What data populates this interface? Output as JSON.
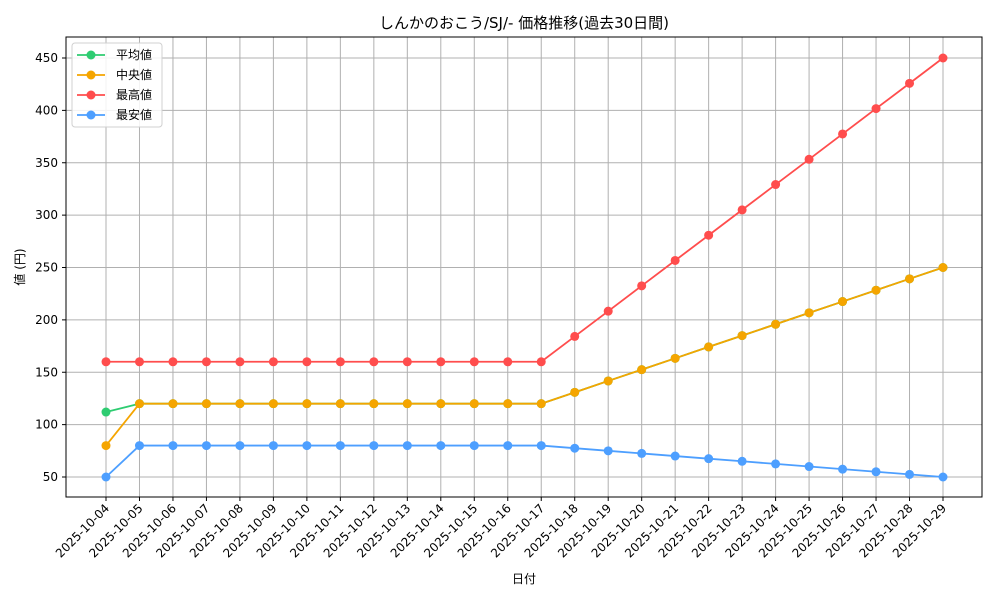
{
  "chart_data": {
    "type": "line",
    "title": "しんかのおこう/SJ/- 価格推移(過去30日間)",
    "xlabel": "日付",
    "ylabel": "値 (円)",
    "ylim": [
      30,
      470
    ],
    "yticks": [
      50,
      100,
      150,
      200,
      250,
      300,
      350,
      400,
      450
    ],
    "grid": true,
    "legend_position": "upper left",
    "categories": [
      "2025-10-04",
      "2025-10-05",
      "2025-10-06",
      "2025-10-07",
      "2025-10-08",
      "2025-10-09",
      "2025-10-10",
      "2025-10-11",
      "2025-10-12",
      "2025-10-13",
      "2025-10-14",
      "2025-10-15",
      "2025-10-16",
      "2025-10-17",
      "2025-10-18",
      "2025-10-19",
      "2025-10-20",
      "2025-10-21",
      "2025-10-22",
      "2025-10-23",
      "2025-10-24",
      "2025-10-25",
      "2025-10-26",
      "2025-10-27",
      "2025-10-28",
      "2025-10-29"
    ],
    "series": [
      {
        "name": "平均値",
        "color": "#2ecc71",
        "values": [
          112,
          120,
          120,
          120,
          120,
          120,
          120,
          120,
          120,
          120,
          120,
          120,
          120,
          120,
          130.8,
          141.7,
          152.5,
          163.3,
          174.2,
          185,
          195.8,
          206.7,
          217.5,
          228.3,
          239.2,
          250
        ]
      },
      {
        "name": "中央値",
        "color": "#f5a500",
        "values": [
          80,
          120,
          120,
          120,
          120,
          120,
          120,
          120,
          120,
          120,
          120,
          120,
          120,
          120,
          130.8,
          141.7,
          152.5,
          163.3,
          174.2,
          185,
          195.8,
          206.7,
          217.5,
          228.3,
          239.2,
          250
        ]
      },
      {
        "name": "最高値",
        "color": "#ff4d4d",
        "values": [
          160,
          160,
          160,
          160,
          160,
          160,
          160,
          160,
          160,
          160,
          160,
          160,
          160,
          160,
          184.2,
          208.3,
          232.5,
          256.7,
          280.8,
          305,
          329.2,
          353.3,
          377.5,
          401.7,
          425.8,
          450
        ]
      },
      {
        "name": "最安値",
        "color": "#4d9fff",
        "values": [
          50,
          80,
          80,
          80,
          80,
          80,
          80,
          80,
          80,
          80,
          80,
          80,
          80,
          80,
          77.5,
          75,
          72.5,
          70,
          67.5,
          65,
          62.5,
          60,
          57.5,
          55,
          52.5,
          50
        ]
      }
    ]
  }
}
